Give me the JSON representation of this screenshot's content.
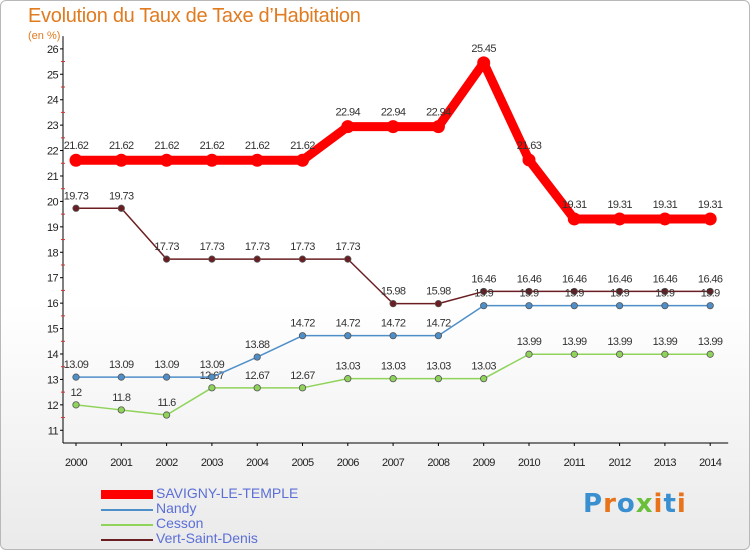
{
  "title": "Evolution du Taux de Taxe d’Habitation",
  "subtitle": "(en %)",
  "logo": {
    "text": "Proxiti",
    "colors": [
      "#3a8fd0",
      "#e8731a",
      "#3a8fd0",
      "#6abf3a",
      "#e8731a",
      "#3a8fd0",
      "#e8731a"
    ]
  },
  "chart_data": {
    "type": "line",
    "x": [
      "2000",
      "2001",
      "2002",
      "2003",
      "2004",
      "2005",
      "2006",
      "2007",
      "2008",
      "2009",
      "2010",
      "2011",
      "2012",
      "2013",
      "2014"
    ],
    "ylim": [
      10.5,
      26.5
    ],
    "yticks": [
      11,
      12,
      13,
      14,
      15,
      16,
      17,
      18,
      19,
      20,
      21,
      22,
      23,
      24,
      25,
      26
    ],
    "grid": false,
    "legend_position": "bottom-left",
    "series": [
      {
        "name": "Vert-Saint-Denis",
        "color": "#6b1e22",
        "values": [
          19.73,
          19.73,
          17.73,
          17.73,
          17.73,
          17.73,
          17.73,
          15.98,
          15.98,
          16.46,
          16.46,
          16.46,
          16.46,
          16.46,
          16.46
        ],
        "labels": [
          "19.73",
          "19.73",
          "17.73",
          "17.73",
          "17.73",
          "17.73",
          "17.73",
          "15.98",
          "15.98",
          "16.46",
          "16.46",
          "16.46",
          "16.46",
          "16.46",
          "16.46"
        ]
      },
      {
        "name": "Cesson",
        "color": "#8fd35a",
        "values": [
          12,
          11.8,
          11.6,
          12.67,
          12.67,
          12.67,
          13.03,
          13.03,
          13.03,
          13.03,
          13.99,
          13.99,
          13.99,
          13.99,
          13.99
        ],
        "labels": [
          "12",
          "11.8",
          "11.6",
          "12.67",
          "12.67",
          "12.67",
          "13.03",
          "13.03",
          "13.03",
          "13.03",
          "13.99",
          "13.99",
          "13.99",
          "13.99",
          "13.99"
        ]
      },
      {
        "name": "Nandy",
        "color": "#4f8fc9",
        "values": [
          13.09,
          13.09,
          13.09,
          13.09,
          13.88,
          14.72,
          14.72,
          14.72,
          14.72,
          15.9,
          15.9,
          15.9,
          15.9,
          15.9,
          15.9
        ],
        "labels": [
          "13.09",
          "13.09",
          "13.09",
          "13.09",
          "13.88",
          "14.72",
          "14.72",
          "14.72",
          "14.72",
          "15.9",
          "15.9",
          "15.9",
          "15.9",
          "15.9",
          "15.9"
        ]
      },
      {
        "name": "SAVIGNY-LE-TEMPLE",
        "color": "#ff0000",
        "values": [
          21.62,
          21.62,
          21.62,
          21.62,
          21.62,
          21.62,
          22.94,
          22.94,
          22.94,
          25.45,
          21.63,
          19.31,
          19.31,
          19.31,
          19.31
        ],
        "labels": [
          "21.62",
          "21.62",
          "21.62",
          "21.62",
          "21.62",
          "21.62",
          "22.94",
          "22.94",
          "22.94",
          "25.45",
          "21.63",
          "19.31",
          "19.31",
          "19.31",
          "19.31"
        ]
      }
    ]
  }
}
